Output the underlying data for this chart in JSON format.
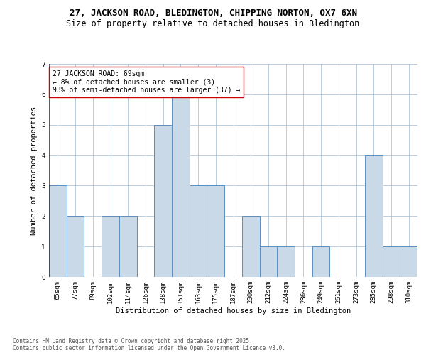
{
  "title_line1": "27, JACKSON ROAD, BLEDINGTON, CHIPPING NORTON, OX7 6XN",
  "title_line2": "Size of property relative to detached houses in Bledington",
  "xlabel": "Distribution of detached houses by size in Bledington",
  "ylabel": "Number of detached properties",
  "categories": [
    "65sqm",
    "77sqm",
    "89sqm",
    "102sqm",
    "114sqm",
    "126sqm",
    "138sqm",
    "151sqm",
    "163sqm",
    "175sqm",
    "187sqm",
    "200sqm",
    "212sqm",
    "224sqm",
    "236sqm",
    "249sqm",
    "261sqm",
    "273sqm",
    "285sqm",
    "298sqm",
    "310sqm"
  ],
  "values": [
    3,
    2,
    0,
    2,
    2,
    0,
    5,
    6,
    3,
    3,
    0,
    2,
    1,
    1,
    0,
    1,
    0,
    0,
    4,
    1,
    1
  ],
  "bar_color": "#c9d9e8",
  "bar_edge_color": "#5a8fc0",
  "subject_line_color": "#cc0000",
  "annotation_text": "27 JACKSON ROAD: 69sqm\n← 8% of detached houses are smaller (3)\n93% of semi-detached houses are larger (37) →",
  "annotation_box_color": "#ffffff",
  "annotation_box_edge_color": "#cc0000",
  "ylim": [
    0,
    7
  ],
  "yticks": [
    0,
    1,
    2,
    3,
    4,
    5,
    6,
    7
  ],
  "footer_text": "Contains HM Land Registry data © Crown copyright and database right 2025.\nContains public sector information licensed under the Open Government Licence v3.0.",
  "bg_color": "#ffffff",
  "grid_color": "#b0c4d8",
  "title_fontsize": 9,
  "subtitle_fontsize": 8.5,
  "axis_label_fontsize": 7.5,
  "tick_fontsize": 6.5,
  "annotation_fontsize": 7,
  "footer_fontsize": 5.5
}
